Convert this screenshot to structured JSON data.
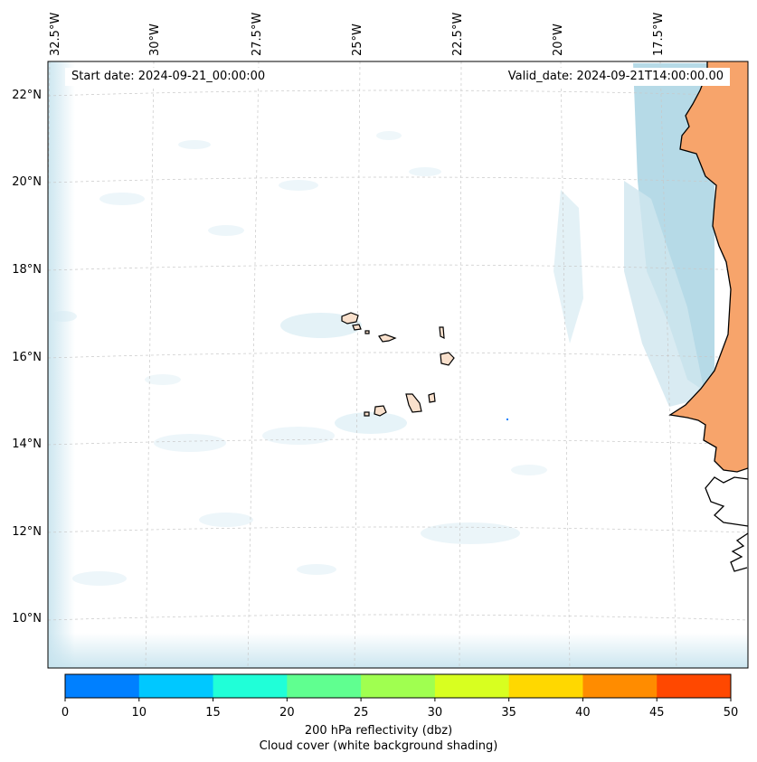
{
  "map": {
    "start_label": "Start date: 2024-09-21_00:00:00",
    "valid_label": "Valid_date: 2024-09-21T14:00:00.00",
    "lon_labels": [
      "32.5°W",
      "30°W",
      "27.5°W",
      "25°W",
      "22.5°W",
      "20°W",
      "17.5°W"
    ],
    "lat_labels": [
      "22°N",
      "20°N",
      "18°N",
      "16°N",
      "14°N",
      "12°N",
      "10°N"
    ],
    "colors": {
      "cloud": "#d2e9f2",
      "land": "#f7a46b",
      "island_fill": "#f9e0cc",
      "coast": "#000000",
      "grid": "#c8c8c8"
    }
  },
  "colorbar": {
    "ticks": [
      "0",
      "10",
      "15",
      "20",
      "25",
      "30",
      "35",
      "40",
      "45",
      "50"
    ],
    "colors": [
      "#0080ff",
      "#00c8ff",
      "#20ffd8",
      "#60ff90",
      "#a0ff50",
      "#d8ff20",
      "#ffd800",
      "#ff8c00",
      "#ff4800"
    ],
    "label_line1": "200 hPa reflectivity (dbz)",
    "label_line2": "Cloud cover (white background shading)"
  }
}
